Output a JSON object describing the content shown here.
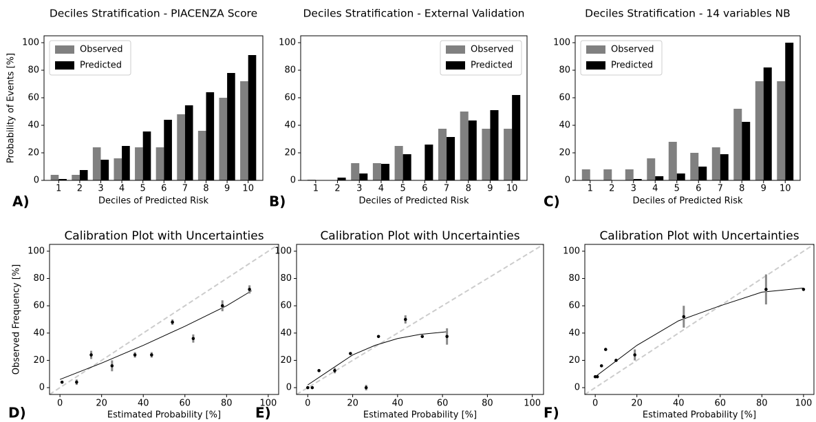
{
  "chart_data": [
    {
      "type": "bar",
      "title": "Deciles Stratification - PIACENZA Score",
      "panel": "A)",
      "xlabel": "Deciles of Predicted Risk",
      "ylabel": "Probability of Events [%]",
      "categories": [
        "1",
        "2",
        "3",
        "4",
        "5",
        "6",
        "7",
        "8",
        "9",
        "10"
      ],
      "ylim": [
        0,
        105
      ],
      "yticks": [
        0,
        20,
        40,
        60,
        80,
        100
      ],
      "legend": "upper left",
      "series": [
        {
          "name": "Observed",
          "color": "#808080",
          "values": [
            4,
            4,
            24,
            16,
            24,
            24,
            48,
            36,
            60,
            72
          ]
        },
        {
          "name": "Predicted",
          "color": "#000000",
          "values": [
            1,
            7.5,
            15,
            25,
            35.5,
            44,
            54.5,
            64,
            78,
            91
          ]
        }
      ]
    },
    {
      "type": "bar",
      "title": "Deciles Stratification - External Validation",
      "panel": "B)",
      "xlabel": "Deciles of Predicted Risk",
      "categories": [
        "1",
        "2",
        "3",
        "4",
        "5",
        "6",
        "7",
        "8",
        "9",
        "10"
      ],
      "ylim": [
        0,
        105
      ],
      "yticks": [
        0,
        20,
        40,
        60,
        80,
        100
      ],
      "legend": "upper right",
      "series": [
        {
          "name": "Observed",
          "color": "#808080",
          "values": [
            0.5,
            0,
            12.5,
            12.5,
            25,
            0,
            37.5,
            50,
            37.5,
            37.5
          ]
        },
        {
          "name": "Predicted",
          "color": "#000000",
          "values": [
            0,
            2,
            5,
            12,
            19,
            26,
            31.5,
            43.5,
            51,
            62
          ]
        }
      ]
    },
    {
      "type": "bar",
      "title": "Deciles Stratification - 14 variables NB",
      "panel": "C)",
      "xlabel": "Deciles of Predicted Risk",
      "categories": [
        "1",
        "2",
        "3",
        "4",
        "5",
        "6",
        "7",
        "8",
        "9",
        "10"
      ],
      "ylim": [
        0,
        105
      ],
      "yticks": [
        0,
        20,
        40,
        60,
        80,
        100
      ],
      "legend": "upper left",
      "series": [
        {
          "name": "Observed",
          "color": "#808080",
          "values": [
            8,
            8,
            8,
            16,
            28,
            20,
            24,
            52,
            72,
            72
          ]
        },
        {
          "name": "Predicted",
          "color": "#000000",
          "values": [
            0,
            0,
            1,
            3,
            5,
            10,
            19,
            42.5,
            82,
            100
          ]
        }
      ]
    },
    {
      "type": "scatter",
      "title": "Calibration Plot with Uncertainties",
      "panel": "D)",
      "xlabel": "Estimated Probability [%]",
      "ylabel": "Observed Frequency [%]",
      "xlim": [
        -5,
        105
      ],
      "ylim": [
        -5,
        105
      ],
      "xticks": [
        0,
        20,
        40,
        60,
        80,
        100
      ],
      "yticks": [
        0,
        20,
        40,
        60,
        80,
        100
      ],
      "x": [
        1,
        8,
        15,
        25,
        36,
        44,
        54,
        64,
        78,
        91
      ],
      "y": [
        4,
        4,
        24,
        16,
        24,
        24,
        48,
        36,
        60,
        72
      ],
      "errors": [
        1,
        2,
        3,
        4,
        2,
        2,
        2,
        3,
        4,
        3
      ],
      "fit_x": [
        0,
        20,
        40,
        60,
        80,
        92
      ],
      "fit_y": [
        6,
        18,
        31,
        45,
        60,
        71
      ]
    },
    {
      "type": "scatter",
      "title": "Calibration Plot with Uncertainties",
      "panel": "E)",
      "xlabel": "Estimated Probability [%]",
      "xlim": [
        -5,
        105
      ],
      "ylim": [
        -5,
        105
      ],
      "xticks": [
        0,
        20,
        40,
        60,
        80,
        100
      ],
      "yticks": [
        0,
        20,
        40,
        60,
        80,
        100
      ],
      "x": [
        0,
        2,
        5,
        12,
        19,
        26,
        31.5,
        43.5,
        51,
        62
      ],
      "y": [
        0,
        0,
        12.5,
        12.5,
        25,
        0,
        37.5,
        50,
        37.5,
        37.5
      ],
      "errors": [
        0,
        0,
        0,
        2,
        1,
        2,
        0,
        3,
        0,
        6
      ],
      "fit_x": [
        0,
        10,
        20,
        30,
        40,
        50,
        62
      ],
      "fit_y": [
        2,
        13,
        24,
        31,
        36,
        39,
        41
      ]
    },
    {
      "type": "scatter",
      "title": "Calibration Plot with Uncertainties",
      "panel": "F)",
      "xlabel": "Estimated Probability [%]",
      "xlim": [
        -5,
        105
      ],
      "ylim": [
        -5,
        105
      ],
      "xticks": [
        0,
        20,
        40,
        60,
        80,
        100
      ],
      "yticks": [
        0,
        20,
        40,
        60,
        80,
        100
      ],
      "x": [
        0,
        1,
        3,
        5,
        10,
        19,
        42.5,
        82,
        100
      ],
      "y": [
        8,
        8,
        16,
        28,
        20,
        24,
        52,
        72,
        72
      ],
      "errors": [
        0,
        0,
        0,
        0,
        1,
        4,
        8,
        11,
        0
      ],
      "fit_x": [
        0,
        20,
        40,
        60,
        80,
        100
      ],
      "fit_y": [
        8,
        31,
        49,
        60,
        70,
        73
      ]
    }
  ]
}
